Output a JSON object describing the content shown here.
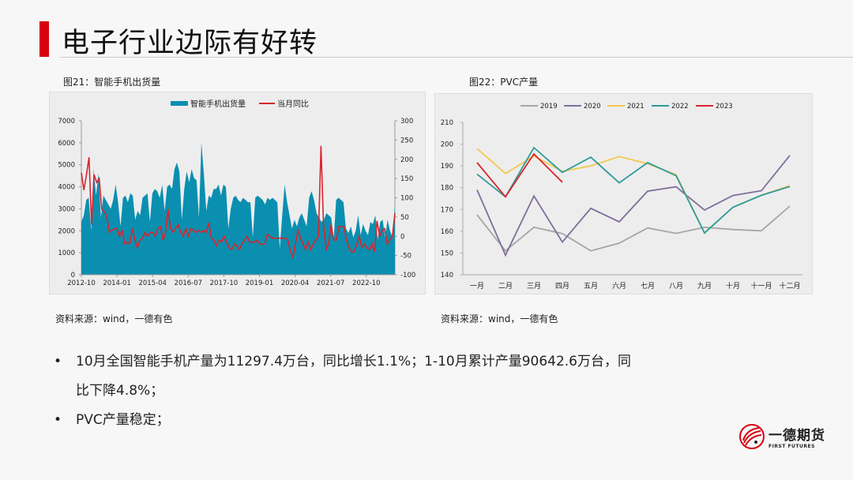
{
  "slide": {
    "title": "电子行业边际有好转",
    "accent_color": "#d7000f"
  },
  "left_figure": {
    "caption": "图21：智能手机出货量",
    "source": "资料来源：wind，一德有色"
  },
  "right_figure": {
    "caption": "图22：PVC产量",
    "source": "资料来源：wind，一德有色"
  },
  "bullets": [
    "10月全国智能手机产量为11297.4万台，同比增长1.1%；1-10月累计产量90642.6万台，同",
    "比下降4.8%；",
    "PVC产量稳定；"
  ],
  "logo": {
    "cn": "一德期货",
    "en": "FIRST FUTURES"
  },
  "chart_data": [
    {
      "type": "area",
      "title": "智能手机出货量",
      "legend": [
        "智能手机出货量",
        "当月同比"
      ],
      "legend_position": "top",
      "xlabel": "",
      "x_ticks": [
        "2012-10",
        "2014-01",
        "2015-04",
        "2016-07",
        "2017-10",
        "2019-01",
        "2020-04",
        "2021-07",
        "2022-10"
      ],
      "y_left_ticks": [
        0,
        1000,
        2000,
        3000,
        4000,
        5000,
        6000,
        7000
      ],
      "y_left_lim": [
        0,
        7000
      ],
      "y_right_ticks": [
        -100,
        -50,
        0,
        50,
        100,
        150,
        200,
        250,
        300
      ],
      "y_right_lim": [
        -100,
        300
      ],
      "series": [
        {
          "name": "智能手机出货量",
          "axis": "left",
          "color": "#0a8fb0",
          "type": "area",
          "values": [
            2400,
            2700,
            3400,
            3500,
            2000,
            4800,
            3600,
            4600,
            2600,
            3600,
            3400,
            3200,
            3000,
            3400,
            4100,
            3300,
            2200,
            3500,
            3600,
            3300,
            3700,
            3600,
            2500,
            2900,
            2700,
            3500,
            3600,
            3700,
            2400,
            3700,
            3900,
            3800,
            3500,
            4100,
            2900,
            4000,
            4100,
            3900,
            4800,
            5100,
            4700,
            2500,
            3900,
            4700,
            4200,
            4800,
            4400,
            4300,
            2600,
            6000,
            4600,
            2900,
            3600,
            3500,
            3900,
            3900,
            4100,
            3600,
            4100,
            4000,
            2100,
            3000,
            3500,
            3600,
            3400,
            3300,
            3500,
            3400,
            3300,
            3300,
            1700,
            3500,
            3600,
            3500,
            3400,
            3200,
            3500,
            3400,
            3500,
            3400,
            3300,
            1200,
            2700,
            4100,
            3300,
            2700,
            2100,
            2500,
            2200,
            2600,
            2800,
            2500,
            2200,
            3500,
            3800,
            3400,
            2800,
            2600,
            2400,
            2500,
            2800,
            2700,
            2600,
            1600,
            3400,
            3500,
            3400,
            3300,
            2100,
            1900,
            2200,
            1700,
            2000,
            2700,
            1800,
            2300,
            2000,
            1800,
            2400,
            2300,
            2700,
            1600,
            2400,
            2500,
            1700,
            2500,
            2000,
            1700,
            3200
          ]
        },
        {
          "name": "当月同比",
          "axis": "right",
          "color": "#d7262e",
          "type": "line",
          "values": [
            165,
            120,
            160,
            205,
            30,
            160,
            140,
            150,
            70,
            65,
            50,
            10,
            15,
            20,
            20,
            0,
            15,
            -20,
            -15,
            -20,
            20,
            -10,
            -30,
            -10,
            -5,
            10,
            0,
            10,
            10,
            0,
            20,
            25,
            -10,
            10,
            70,
            20,
            10,
            20,
            30,
            10,
            0,
            20,
            0,
            20,
            15,
            10,
            15,
            10,
            15,
            10,
            35,
            -5,
            -10,
            -25,
            -10,
            -15,
            0,
            -15,
            -30,
            -35,
            -20,
            -25,
            -35,
            -20,
            -10,
            0,
            -15,
            -15,
            -15,
            -10,
            -20,
            -20,
            -20,
            5,
            0,
            -5,
            -5,
            -5,
            -5,
            -5,
            -5,
            -10,
            -40,
            -55,
            -20,
            15,
            -5,
            -20,
            -35,
            -15,
            -35,
            -20,
            -10,
            0,
            235,
            30,
            -35,
            -20,
            30,
            -10,
            -10,
            25,
            25,
            25,
            -10,
            -30,
            -40,
            -40,
            -20,
            0,
            -30,
            -20,
            -30,
            -35,
            -20,
            -40,
            40,
            0,
            15,
            20,
            -20,
            -10,
            0,
            60
          ]
        }
      ]
    },
    {
      "type": "line",
      "title": "PVC产量",
      "legend": [
        "2019",
        "2020",
        "2021",
        "2022",
        "2023"
      ],
      "legend_position": "top",
      "categories": [
        "一月",
        "二月",
        "三月",
        "四月",
        "五月",
        "六月",
        "七月",
        "八月",
        "九月",
        "十月",
        "十一月",
        "十二月"
      ],
      "y_ticks": [
        140,
        150,
        160,
        170,
        180,
        190,
        200,
        210
      ],
      "ylim": [
        140,
        210
      ],
      "series": [
        {
          "name": "2019",
          "color": "#a6a6a6",
          "values": [
            167.5,
            151.0,
            161.8,
            158.9,
            151.0,
            154.5,
            161.5,
            159.0,
            161.8,
            160.8,
            160.2,
            171.5
          ]
        },
        {
          "name": "2020",
          "color": "#7e6f9a",
          "values": [
            179.0,
            149.0,
            176.2,
            155.0,
            170.5,
            164.3,
            178.4,
            180.4,
            169.7,
            176.4,
            178.6,
            194.8
          ]
        },
        {
          "name": "2021",
          "color": "#f2c94c",
          "values": [
            198.0,
            186.5,
            194.5,
            187.5,
            190.0,
            194.3,
            191.0,
            186.0,
            159.2,
            171.0,
            176.5,
            181.0
          ]
        },
        {
          "name": "2022",
          "color": "#2c9c9c",
          "values": [
            186.2,
            175.8,
            198.4,
            187.0,
            194.0,
            182.2,
            191.5,
            185.5,
            159.2,
            171.0,
            176.5,
            180.5
          ]
        },
        {
          "name": "2023",
          "color": "#d7262e",
          "values": [
            191.5,
            175.8,
            195.5,
            182.5
          ]
        }
      ]
    }
  ]
}
